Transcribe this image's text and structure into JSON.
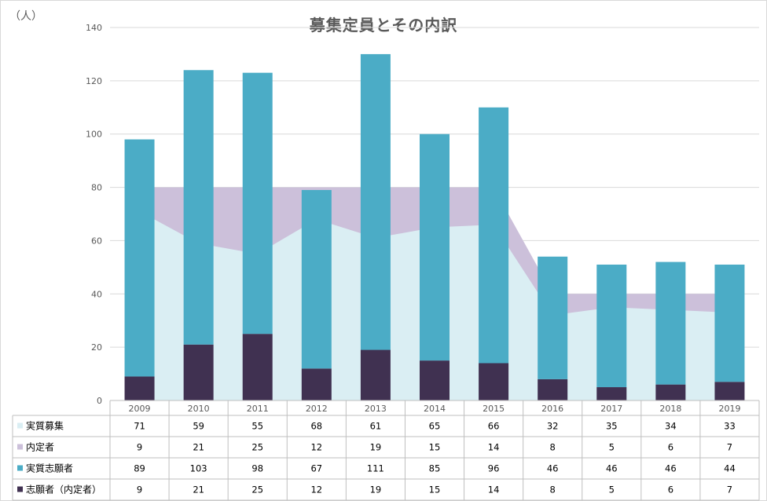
{
  "page": {
    "unit_label": "（人）",
    "title": "募集定員とその内訳"
  },
  "chart_data": {
    "type": "bar",
    "title": "募集定員とその内訳",
    "ylabel": "（人）",
    "ylim": [
      0,
      140
    ],
    "yticks": [
      0,
      20,
      40,
      60,
      80,
      100,
      120,
      140
    ],
    "grid": true,
    "legend": "table-left",
    "categories": [
      "2009",
      "2010",
      "2011",
      "2012",
      "2013",
      "2014",
      "2015",
      "2016",
      "2017",
      "2018",
      "2019"
    ],
    "series": [
      {
        "name": "実質募集",
        "kind": "area",
        "stack": "area",
        "color": "#daeef3",
        "values": [
          71,
          59,
          55,
          68,
          61,
          65,
          66,
          32,
          35,
          34,
          33
        ]
      },
      {
        "name": "内定者",
        "kind": "area",
        "stack": "area",
        "color": "#ccc0da",
        "values": [
          9,
          21,
          25,
          12,
          19,
          15,
          14,
          8,
          5,
          6,
          7
        ]
      },
      {
        "name": "実質志願者",
        "kind": "bar",
        "stack": "bar",
        "color": "#4bacc6",
        "values": [
          89,
          103,
          98,
          67,
          111,
          85,
          96,
          46,
          46,
          46,
          44
        ]
      },
      {
        "name": "志願者（内定者）",
        "kind": "bar",
        "stack": "bar",
        "color": "#403151",
        "values": [
          9,
          21,
          25,
          12,
          19,
          15,
          14,
          8,
          5,
          6,
          7
        ]
      }
    ]
  }
}
